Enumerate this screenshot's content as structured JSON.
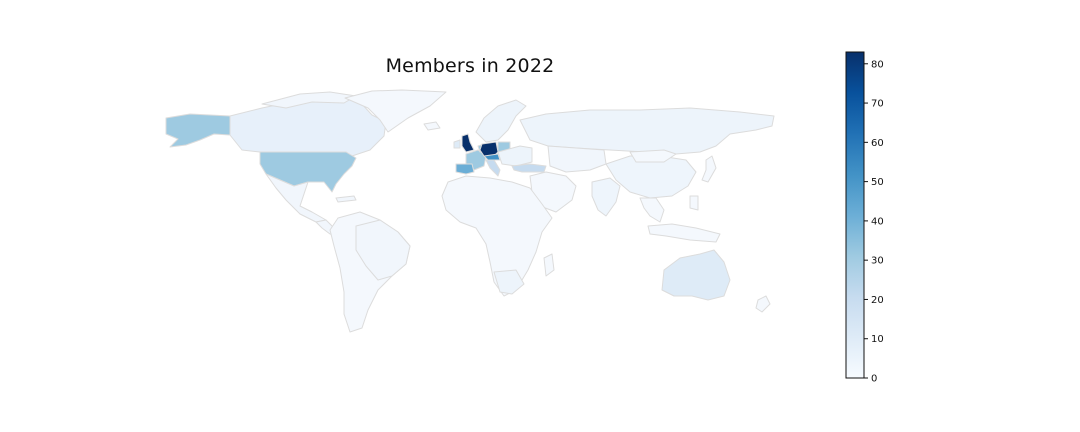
{
  "title": "Members in 2022",
  "colormap": {
    "name": "Blues",
    "low_color": "#f7fbff",
    "high_color": "#08306b",
    "border_color": "#dcdcdc"
  },
  "colorbar": {
    "min": 0,
    "max": 83,
    "ticks": [
      "0",
      "10",
      "20",
      "30",
      "40",
      "50",
      "60",
      "70",
      "80"
    ]
  },
  "chart_data": {
    "type": "choropleth",
    "title": "Members in 2022",
    "value_range": [
      0,
      83
    ],
    "regions": [
      {
        "name": "Germany",
        "value": 83
      },
      {
        "name": "United Kingdom",
        "value": 80
      },
      {
        "name": "Austria",
        "value": 45
      },
      {
        "name": "Spain",
        "value": 40
      },
      {
        "name": "United States",
        "value": 35
      },
      {
        "name": "France",
        "value": 33
      },
      {
        "name": "Poland",
        "value": 35
      },
      {
        "name": "Turkey",
        "value": 25
      },
      {
        "name": "Italy",
        "value": 22
      },
      {
        "name": "Netherlands",
        "value": 30
      },
      {
        "name": "Canada",
        "value": 10
      },
      {
        "name": "Australia",
        "value": 12
      },
      {
        "name": "Russia",
        "value": 6
      },
      {
        "name": "China",
        "value": 4
      },
      {
        "name": "India",
        "value": 4
      },
      {
        "name": "Brazil",
        "value": 2
      },
      {
        "name": "Greenland",
        "value": 1
      },
      {
        "name": "Africa (most countries)",
        "value": 1
      },
      {
        "name": "South America (other)",
        "value": 1
      }
    ]
  }
}
